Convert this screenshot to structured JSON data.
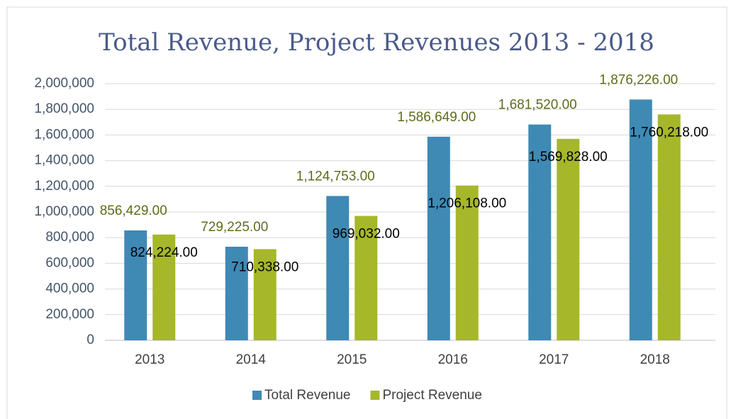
{
  "chart_data": {
    "type": "bar",
    "title": "Total Revenue, Project Revenues 2013 - 2018",
    "categories": [
      "2013",
      "2014",
      "2015",
      "2016",
      "2017",
      "2018"
    ],
    "series": [
      {
        "name": "Total Revenue",
        "color": "#3f89b5",
        "label_color": "#5f6b1a",
        "values": [
          856429,
          729225,
          1124753,
          1586649,
          1681520,
          1876226
        ],
        "value_labels": [
          "856,429.00",
          "729,225.00",
          "1,124,753.00",
          "1,586,649.00",
          "1,681,520.00",
          "1,876,226.00"
        ]
      },
      {
        "name": "Project Revenue",
        "color": "#a6b72a",
        "label_color": "#000000",
        "values": [
          824224,
          710338,
          969032,
          1206108,
          1569828,
          1760218
        ],
        "value_labels": [
          "824,224.00",
          "710,338.00",
          "969,032.00",
          "1,206,108.00",
          "1,569,828.00",
          "1,760,218.00"
        ]
      }
    ],
    "ylim": [
      0,
      2000000
    ],
    "yticks": [
      0,
      {
        "value": 200000,
        "label": "200,000"
      },
      {
        "value": 400000,
        "label": "400,000"
      },
      {
        "value": 600000,
        "label": "600,000"
      },
      {
        "value": 800000,
        "label": "800,000"
      },
      {
        "value": 1000000,
        "label": "1,000,000"
      },
      {
        "value": 1200000,
        "label": "1,200,000"
      },
      {
        "value": 1400000,
        "label": "1,400,000"
      },
      {
        "value": 1600000,
        "label": "1,600,000"
      },
      {
        "value": 1800000,
        "label": "1,800,000"
      },
      {
        "value": 2000000,
        "label": "2,000,000"
      }
    ],
    "grid": true,
    "legend": "bottom"
  }
}
